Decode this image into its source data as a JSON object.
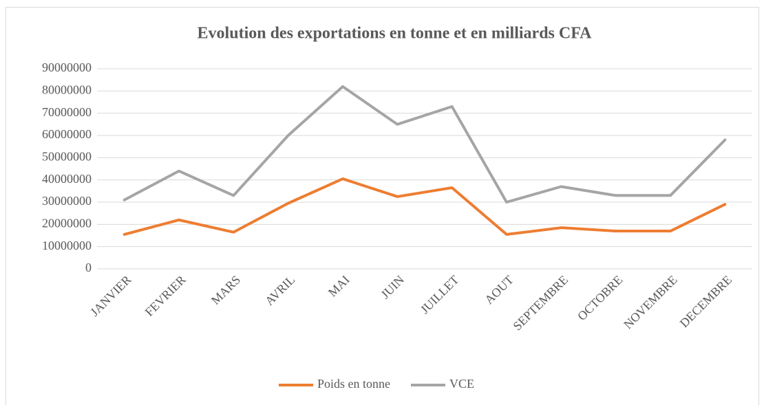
{
  "chart_data": {
    "type": "line",
    "title": "Evolution des exportations en tonne et en milliards CFA",
    "categories": [
      "JANVIER",
      "FEVRIER",
      "MARS",
      "AVRIL",
      "MAI",
      "JUIN",
      "JUILLET",
      "AOUT",
      "SEPTEMBRE",
      "OCTOBRE",
      "NOVEMBRE",
      "DECEMBRE"
    ],
    "series": [
      {
        "name": "Poids en tonne",
        "color": "#ed7d31",
        "values": [
          15500000,
          22000000,
          16500000,
          29500000,
          40500000,
          32500000,
          36500000,
          15500000,
          18500000,
          17000000,
          17000000,
          29000000
        ]
      },
      {
        "name": "VCE",
        "color": "#a5a5a5",
        "values": [
          31000000,
          44000000,
          33000000,
          60000000,
          82000000,
          65000000,
          73000000,
          30000000,
          37000000,
          33000000,
          33000000,
          58000000
        ]
      }
    ],
    "ylim": [
      0,
      90000000
    ],
    "yticks": [
      0,
      10000000,
      20000000,
      30000000,
      40000000,
      50000000,
      60000000,
      70000000,
      80000000,
      90000000
    ],
    "grid": true,
    "legend": "bottom"
  }
}
